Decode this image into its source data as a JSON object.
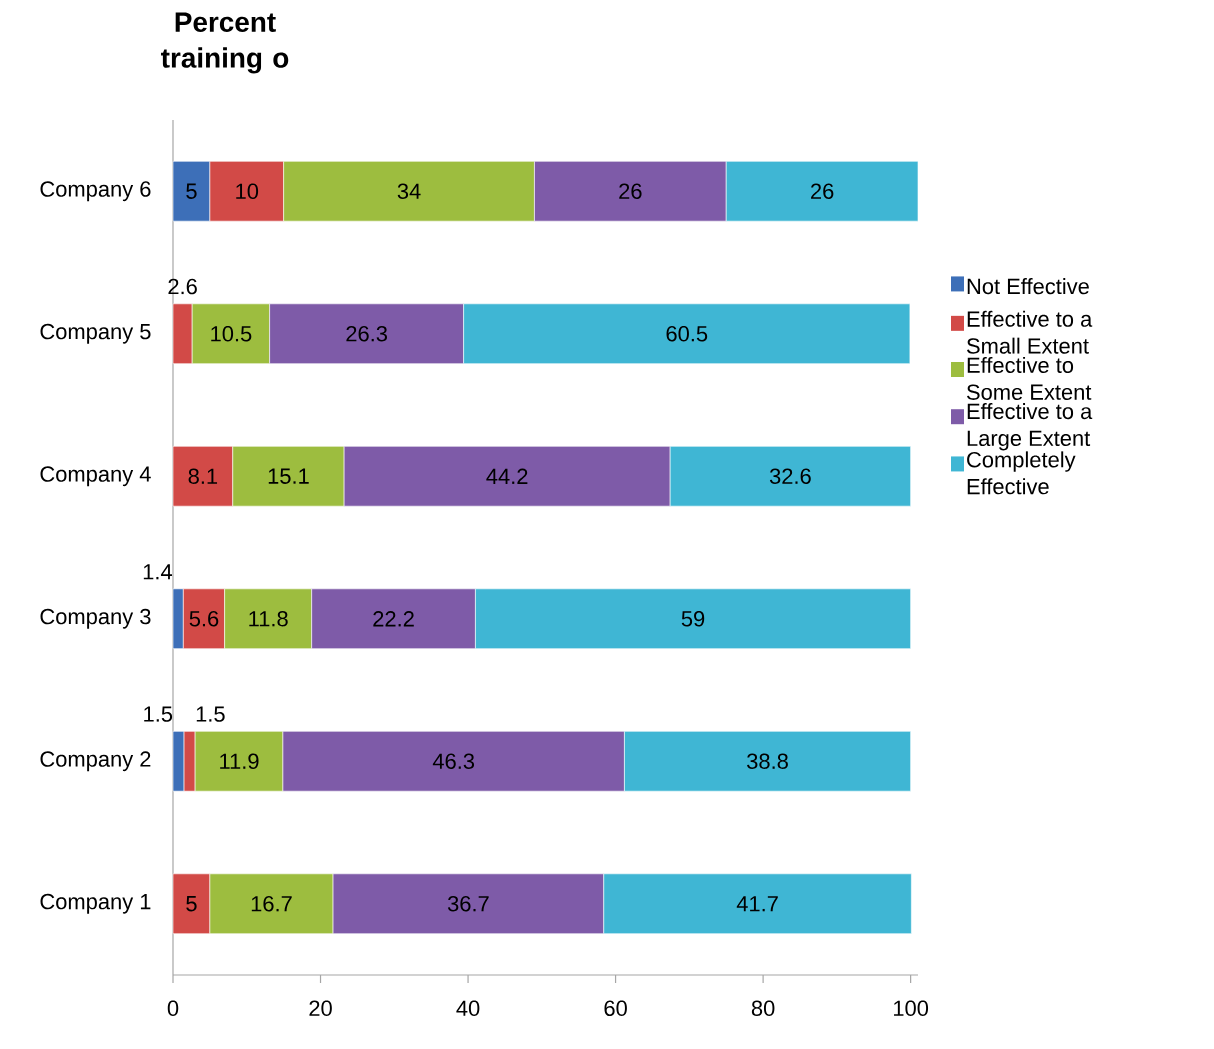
{
  "chart_data": {
    "type": "bar",
    "orientation": "horizontal",
    "stacked": true,
    "title": "Percent training o",
    "categories": [
      "Company 6",
      "Company 5",
      "Company 4",
      "Company 3",
      "Company 2",
      "Company 1"
    ],
    "series": [
      {
        "name": "Not Effective",
        "color": "#3d6fb8",
        "values": [
          5,
          null,
          null,
          1.4,
          1.5,
          null
        ]
      },
      {
        "name": "Effective to a Small Extent",
        "color": "#d24a47",
        "values": [
          10,
          2.6,
          8.1,
          5.6,
          1.5,
          5
        ]
      },
      {
        "name": "Effective to Some Extent",
        "color": "#9dbd3f",
        "values": [
          34,
          10.5,
          15.1,
          11.8,
          11.9,
          16.7
        ]
      },
      {
        "name": "Effective to a Large Extent",
        "color": "#7e5ba8",
        "values": [
          26,
          26.3,
          44.2,
          22.2,
          46.3,
          36.7
        ]
      },
      {
        "name": "Completely Effective",
        "color": "#3fb6d4",
        "values": [
          26,
          60.5,
          32.6,
          59,
          38.8,
          41.7
        ]
      }
    ],
    "xlim": [
      0,
      101
    ],
    "xticks": [
      0,
      20,
      40,
      60,
      80,
      100
    ],
    "data_labels": true,
    "legend": "right",
    "grid": false
  }
}
